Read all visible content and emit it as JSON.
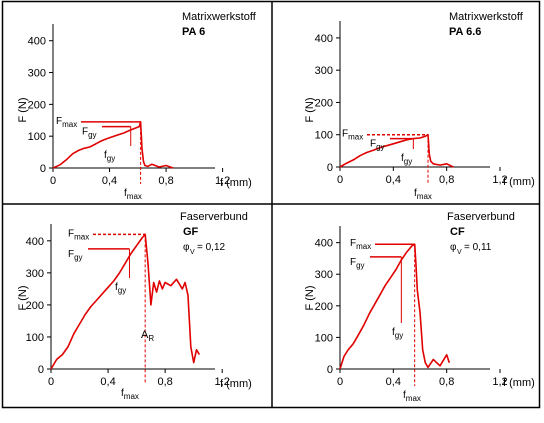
{
  "figure": {
    "border_color": "#000000",
    "curve_color": "#e00000",
    "axis_color": "#000000"
  },
  "chart_data": [
    {
      "type": "line",
      "panel": "top-left",
      "header": "Matrixwerkstoff",
      "material": "PA 6",
      "xlabel": "f (mm)",
      "ylabel": "F (N)",
      "xlim": [
        0,
        1.5
      ],
      "ylim": [
        0,
        440
      ],
      "xticks": [
        {
          "value": 0,
          "label": "0"
        },
        {
          "value": 0.4,
          "label": "0,4"
        },
        {
          "value": 0.8,
          "label": "0,8"
        },
        {
          "value": 1.2,
          "label": "1,2"
        }
      ],
      "yticks": [
        {
          "value": 0,
          "label": "0"
        },
        {
          "value": 100,
          "label": "100"
        },
        {
          "value": 200,
          "label": "200"
        },
        {
          "value": 300,
          "label": "300"
        },
        {
          "value": 400,
          "label": "400"
        }
      ],
      "series": [
        {
          "x": [
            0,
            0.05,
            0.1,
            0.14,
            0.18,
            0.22,
            0.26,
            0.3,
            0.34,
            0.38,
            0.42,
            0.46,
            0.5,
            0.54,
            0.58,
            0.61,
            0.62,
            0.63,
            0.64,
            0.65,
            0.67,
            0.7,
            0.75,
            0.8,
            0.85
          ],
          "y": [
            0,
            10,
            28,
            45,
            55,
            62,
            66,
            75,
            85,
            92,
            98,
            104,
            110,
            118,
            125,
            130,
            145,
            60,
            20,
            8,
            5,
            12,
            3,
            8,
            0
          ]
        }
      ],
      "annotations": [
        {
          "kind": "Fmax",
          "base": "F",
          "sub": "max",
          "y": 145,
          "x": 0.62
        },
        {
          "kind": "Fgy",
          "base": "F",
          "sub": "gy",
          "y": 130,
          "x": 0.55
        },
        {
          "kind": "fgy-label",
          "base": "f",
          "sub": "gy"
        },
        {
          "kind": "fmax-label",
          "base": "f",
          "sub": "max",
          "x": 0.62
        }
      ]
    },
    {
      "type": "line",
      "panel": "top-right",
      "header": "Matrixwerkstoff",
      "material": "PA 6.6",
      "xlabel": "f (mm)",
      "ylabel": "F (N)",
      "xlim": [
        0,
        1.5
      ],
      "ylim": [
        0,
        440
      ],
      "xticks": [
        {
          "value": 0,
          "label": "0"
        },
        {
          "value": 0.4,
          "label": "0,4"
        },
        {
          "value": 0.8,
          "label": "0,8"
        },
        {
          "value": 1.2,
          "label": "1,2"
        }
      ],
      "yticks": [
        {
          "value": 0,
          "label": "0"
        },
        {
          "value": 100,
          "label": "100"
        },
        {
          "value": 200,
          "label": "200"
        },
        {
          "value": 300,
          "label": "300"
        },
        {
          "value": 400,
          "label": "400"
        }
      ],
      "series": [
        {
          "x": [
            0,
            0.05,
            0.1,
            0.15,
            0.2,
            0.25,
            0.3,
            0.35,
            0.4,
            0.45,
            0.5,
            0.55,
            0.6,
            0.64,
            0.66,
            0.67,
            0.68,
            0.7,
            0.75,
            0.8,
            0.85
          ],
          "y": [
            0,
            12,
            22,
            35,
            45,
            52,
            60,
            66,
            72,
            78,
            84,
            88,
            90,
            95,
            100,
            40,
            18,
            10,
            6,
            10,
            0
          ]
        }
      ],
      "annotations": [
        {
          "kind": "Fmax",
          "base": "F",
          "sub": "max",
          "y": 100,
          "x": 0.66
        },
        {
          "kind": "Fgy",
          "base": "F",
          "sub": "gy",
          "y": 88,
          "x": 0.55
        },
        {
          "kind": "fgy-label",
          "base": "f",
          "sub": "gy"
        },
        {
          "kind": "fmax-label",
          "base": "f",
          "sub": "max",
          "x": 0.66
        }
      ]
    },
    {
      "type": "line",
      "panel": "bottom-left",
      "header": "Faserverbund",
      "material": "GF",
      "fraction_label": "= 0,12",
      "fraction_symbol": "φ",
      "fraction_sub": "V",
      "xlabel": "f (mm)",
      "ylabel": "F (N)",
      "xlim": [
        0,
        1.5
      ],
      "ylim": [
        0,
        440
      ],
      "xticks": [
        {
          "value": 0,
          "label": "0"
        },
        {
          "value": 0.4,
          "label": "0,4"
        },
        {
          "value": 0.8,
          "label": "0,8"
        },
        {
          "value": 1.2,
          "label": "1,2"
        }
      ],
      "yticks": [
        {
          "value": 0,
          "label": "0"
        },
        {
          "value": 100,
          "label": "100"
        },
        {
          "value": 200,
          "label": "200"
        },
        {
          "value": 300,
          "label": "300"
        },
        {
          "value": 400,
          "label": "400"
        }
      ],
      "series": [
        {
          "x": [
            0,
            0.04,
            0.08,
            0.12,
            0.16,
            0.2,
            0.24,
            0.28,
            0.32,
            0.36,
            0.4,
            0.44,
            0.48,
            0.52,
            0.56,
            0.6,
            0.64,
            0.66,
            0.68,
            0.7,
            0.72,
            0.74,
            0.76,
            0.78,
            0.8,
            0.84,
            0.88,
            0.92,
            0.94,
            0.96,
            0.97,
            0.98,
            1.0,
            1.02,
            1.04
          ],
          "y": [
            0,
            30,
            45,
            70,
            110,
            140,
            170,
            195,
            215,
            235,
            255,
            275,
            300,
            330,
            360,
            385,
            410,
            420,
            330,
            200,
            270,
            240,
            275,
            250,
            270,
            260,
            280,
            250,
            270,
            230,
            150,
            70,
            20,
            60,
            45
          ]
        }
      ],
      "annotations": [
        {
          "kind": "Fmax",
          "base": "F",
          "sub": "max",
          "y": 420,
          "x": 0.66
        },
        {
          "kind": "Fgy",
          "base": "F",
          "sub": "gy",
          "y": 375,
          "x": 0.55
        },
        {
          "kind": "fgy-label",
          "base": "f",
          "sub": "gy"
        },
        {
          "kind": "fmax-label",
          "base": "f",
          "sub": "max",
          "x": 0.66
        },
        {
          "kind": "AR",
          "base": "A",
          "sub": "R"
        }
      ]
    },
    {
      "type": "line",
      "panel": "bottom-right",
      "header": "Faserverbund",
      "material": "CF",
      "fraction_label": "= 0,11",
      "fraction_symbol": "φ",
      "fraction_sub": "V",
      "xlabel": "f (mm)",
      "ylabel": "F (N)",
      "xlim": [
        0,
        1.5
      ],
      "ylim": [
        0,
        440
      ],
      "xticks": [
        {
          "value": 0,
          "label": "0"
        },
        {
          "value": 0.4,
          "label": "0,4"
        },
        {
          "value": 0.8,
          "label": "0,8"
        },
        {
          "value": 1.2,
          "label": "1,2"
        }
      ],
      "yticks": [
        {
          "value": 0,
          "label": "0"
        },
        {
          "value": 100,
          "label": "100"
        },
        {
          "value": 200,
          "label": "200"
        },
        {
          "value": 300,
          "label": "300"
        },
        {
          "value": 400,
          "label": "400"
        }
      ],
      "series": [
        {
          "x": [
            0,
            0.03,
            0.06,
            0.1,
            0.14,
            0.18,
            0.22,
            0.26,
            0.3,
            0.34,
            0.38,
            0.42,
            0.46,
            0.5,
            0.54,
            0.56,
            0.57,
            0.58,
            0.6,
            0.62,
            0.64,
            0.66,
            0.7,
            0.75,
            0.8,
            0.82
          ],
          "y": [
            0,
            40,
            60,
            80,
            110,
            140,
            175,
            205,
            235,
            265,
            290,
            315,
            345,
            370,
            390,
            395,
            330,
            250,
            180,
            60,
            20,
            5,
            30,
            10,
            45,
            20
          ]
        }
      ],
      "annotations": [
        {
          "kind": "Fmax",
          "base": "F",
          "sub": "max",
          "y": 395,
          "x": 0.56
        },
        {
          "kind": "Fgy",
          "base": "F",
          "sub": "gy",
          "y": 355,
          "x": 0.46
        },
        {
          "kind": "fgy-label",
          "base": "f",
          "sub": "gy"
        },
        {
          "kind": "fmax-label",
          "base": "f",
          "sub": "max",
          "x": 0.56
        }
      ]
    }
  ]
}
